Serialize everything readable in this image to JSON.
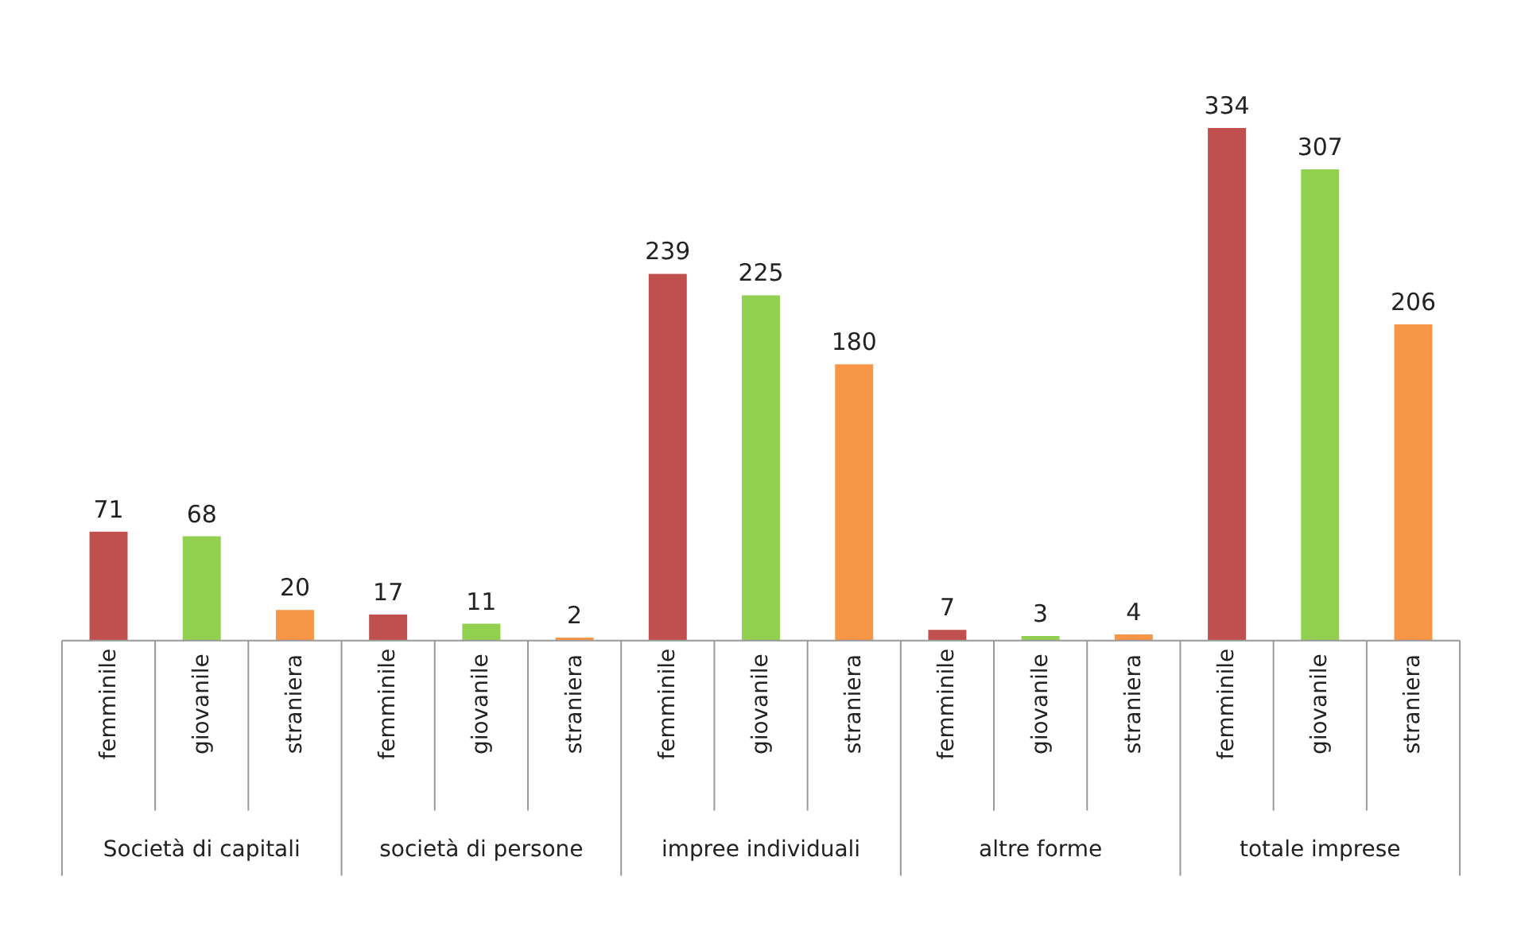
{
  "chart_data": {
    "type": "bar",
    "data_labels": true,
    "categories": [
      "Società di capitali",
      "società di persone",
      "impree individuali",
      "altre forme",
      "totale imprese"
    ],
    "series": [
      {
        "name": "femminile",
        "color": "#c0504d",
        "values": [
          71,
          17,
          239,
          7,
          334
        ]
      },
      {
        "name": "giovanile",
        "color": "#92d050",
        "values": [
          68,
          11,
          225,
          3,
          307
        ]
      },
      {
        "name": "straniera",
        "color": "#f79646",
        "values": [
          20,
          2,
          180,
          4,
          206
        ]
      }
    ]
  }
}
